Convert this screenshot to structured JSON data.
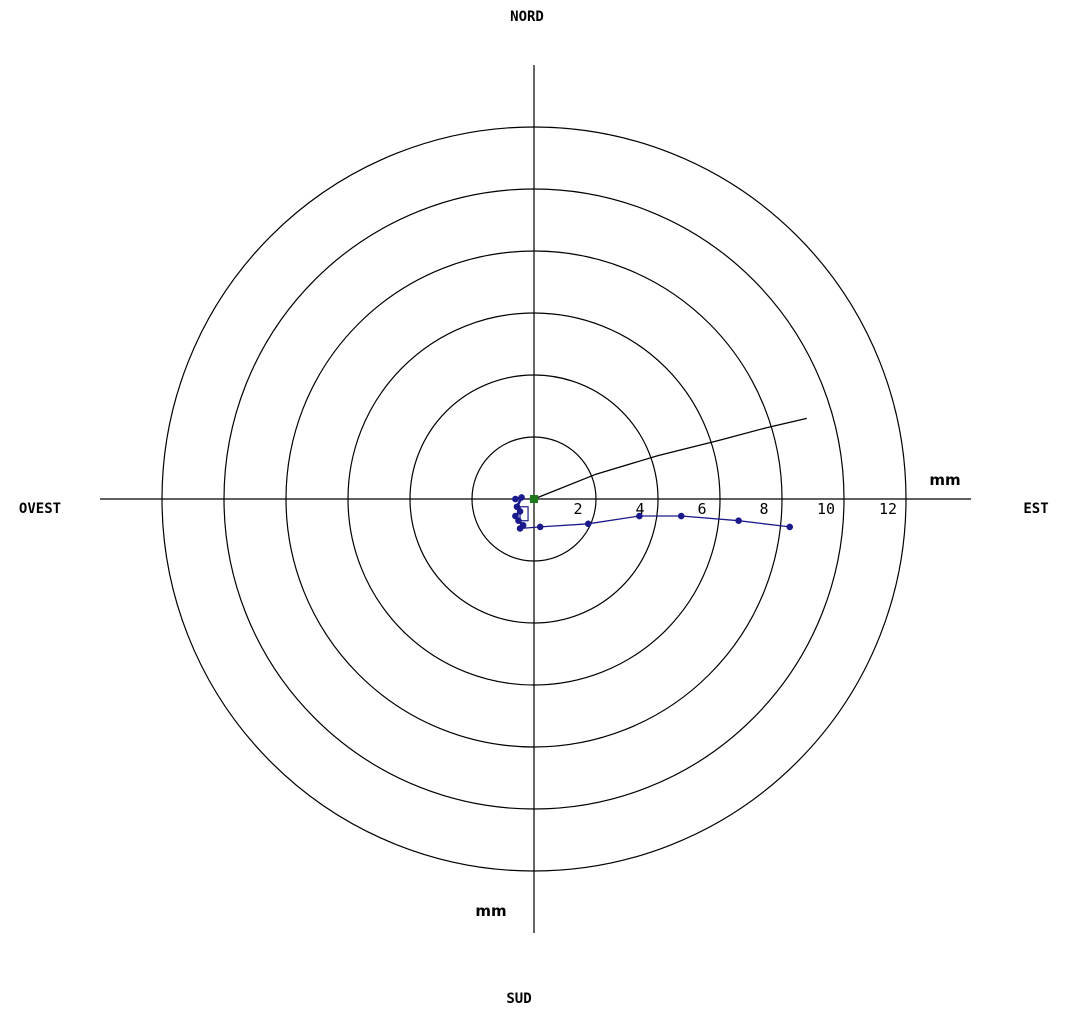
{
  "chart_data": {
    "type": "line",
    "title": "",
    "compass": {
      "north": "NORD",
      "south": "SUD",
      "west": "OVEST",
      "east": "EST"
    },
    "unit_label_x": "mm",
    "unit_label_y": "mm",
    "ring_radii": [
      2,
      4,
      6,
      8,
      10,
      12
    ],
    "tick_labels": [
      "2",
      "4",
      "6",
      "8",
      "10",
      "12"
    ],
    "rmax": 12,
    "colors": {
      "trace_main": "#1a1a8c",
      "trace_reference": "#000000",
      "origin_marker": "#1a7a1a",
      "axes": "#000000"
    },
    "series": [
      {
        "color": "#000000",
        "markers": false,
        "points": [
          [
            0,
            0
          ],
          [
            2,
            0.8
          ],
          [
            4,
            1.4
          ],
          [
            6,
            1.9
          ],
          [
            7.5,
            2.3
          ],
          [
            8.8,
            2.6
          ]
        ]
      },
      {
        "color": "#1a1a8c",
        "markers": true,
        "points": [
          [
            -0.45,
            -0.95
          ],
          [
            0.2,
            -0.9
          ],
          [
            1.75,
            -0.8
          ],
          [
            3.4,
            -0.55
          ],
          [
            4.75,
            -0.55
          ],
          [
            6.6,
            -0.7
          ],
          [
            8.25,
            -0.9
          ]
        ]
      },
      {
        "color": "#1a1a8c",
        "markers": true,
        "points": [
          [
            -0.6,
            0.0
          ],
          [
            -0.4,
            0.05
          ],
          [
            -0.55,
            -0.25
          ],
          [
            -0.45,
            -0.4
          ],
          [
            -0.6,
            -0.55
          ],
          [
            -0.5,
            -0.7
          ],
          [
            -0.35,
            -0.85
          ]
        ]
      }
    ],
    "origin_marker": [
      0,
      0
    ]
  }
}
